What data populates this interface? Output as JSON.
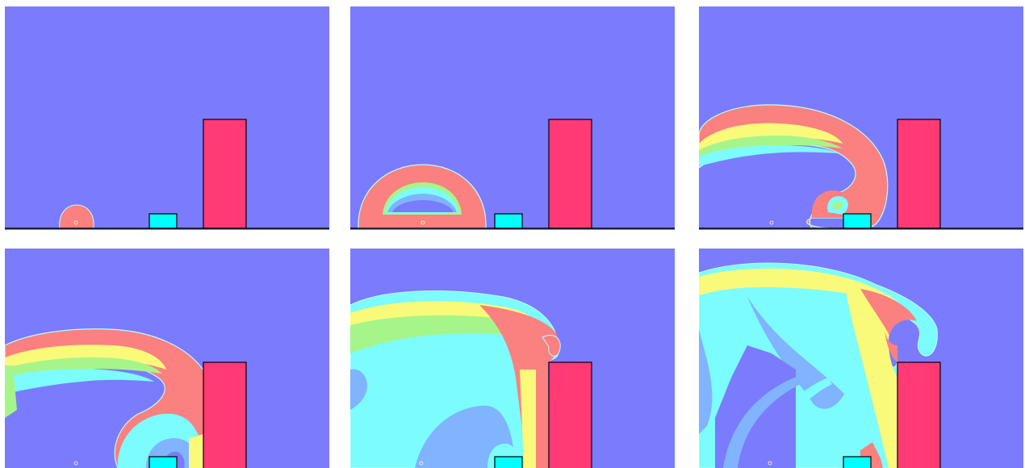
{
  "figure": {
    "frames": [
      {
        "id": "t1",
        "stage": "initial"
      },
      {
        "id": "t2",
        "stage": "expanding-dome"
      },
      {
        "id": "t3",
        "stage": "wave-reaches-obstacles"
      },
      {
        "id": "t4",
        "stage": "wave-wraps-tall-block"
      },
      {
        "id": "t5",
        "stage": "plume-overtops-block"
      },
      {
        "id": "t6",
        "stage": "late-mixing"
      }
    ],
    "colors": {
      "background": "#7b7bfe",
      "hot": "#fb8080",
      "warm": "#fafa7a",
      "mid": "#a6f58a",
      "cool": "#7cfcfc",
      "cooler": "#80b4ff",
      "small_block": "#00ffff",
      "tall_block": "#ff3a75",
      "outline": "#000000"
    }
  }
}
